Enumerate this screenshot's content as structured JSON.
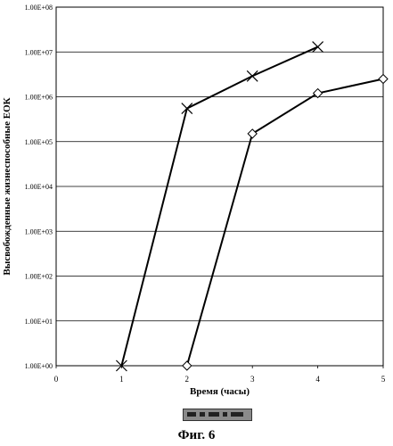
{
  "chart_data": {
    "type": "line",
    "xlabel": "Время (часы)",
    "ylabel": "Высвобожденные жизнеспособные ЕОК",
    "yscale": "log",
    "xlim": [
      0,
      5
    ],
    "ylim": [
      1,
      100000000
    ],
    "x_ticks": [
      "0",
      "1",
      "2",
      "3",
      "4",
      "5"
    ],
    "y_ticks": [
      "1.00E+00",
      "1.00E+01",
      "1.00E+02",
      "1.00E+03",
      "1.00E+04",
      "1.00E+05",
      "1.00E+06",
      "1.00E+07",
      "1.00E+08"
    ],
    "grid": "horizontal",
    "series": [
      {
        "marker": "x",
        "color": "#000000",
        "x": [
          1,
          2,
          3,
          4
        ],
        "y": [
          1,
          550000,
          2900000,
          13000000
        ]
      },
      {
        "marker": "diamond",
        "color": "#000000",
        "x": [
          2,
          3,
          4,
          5
        ],
        "y": [
          1,
          150000,
          1200000,
          2500000
        ]
      }
    ]
  },
  "caption": "Фиг. 6"
}
